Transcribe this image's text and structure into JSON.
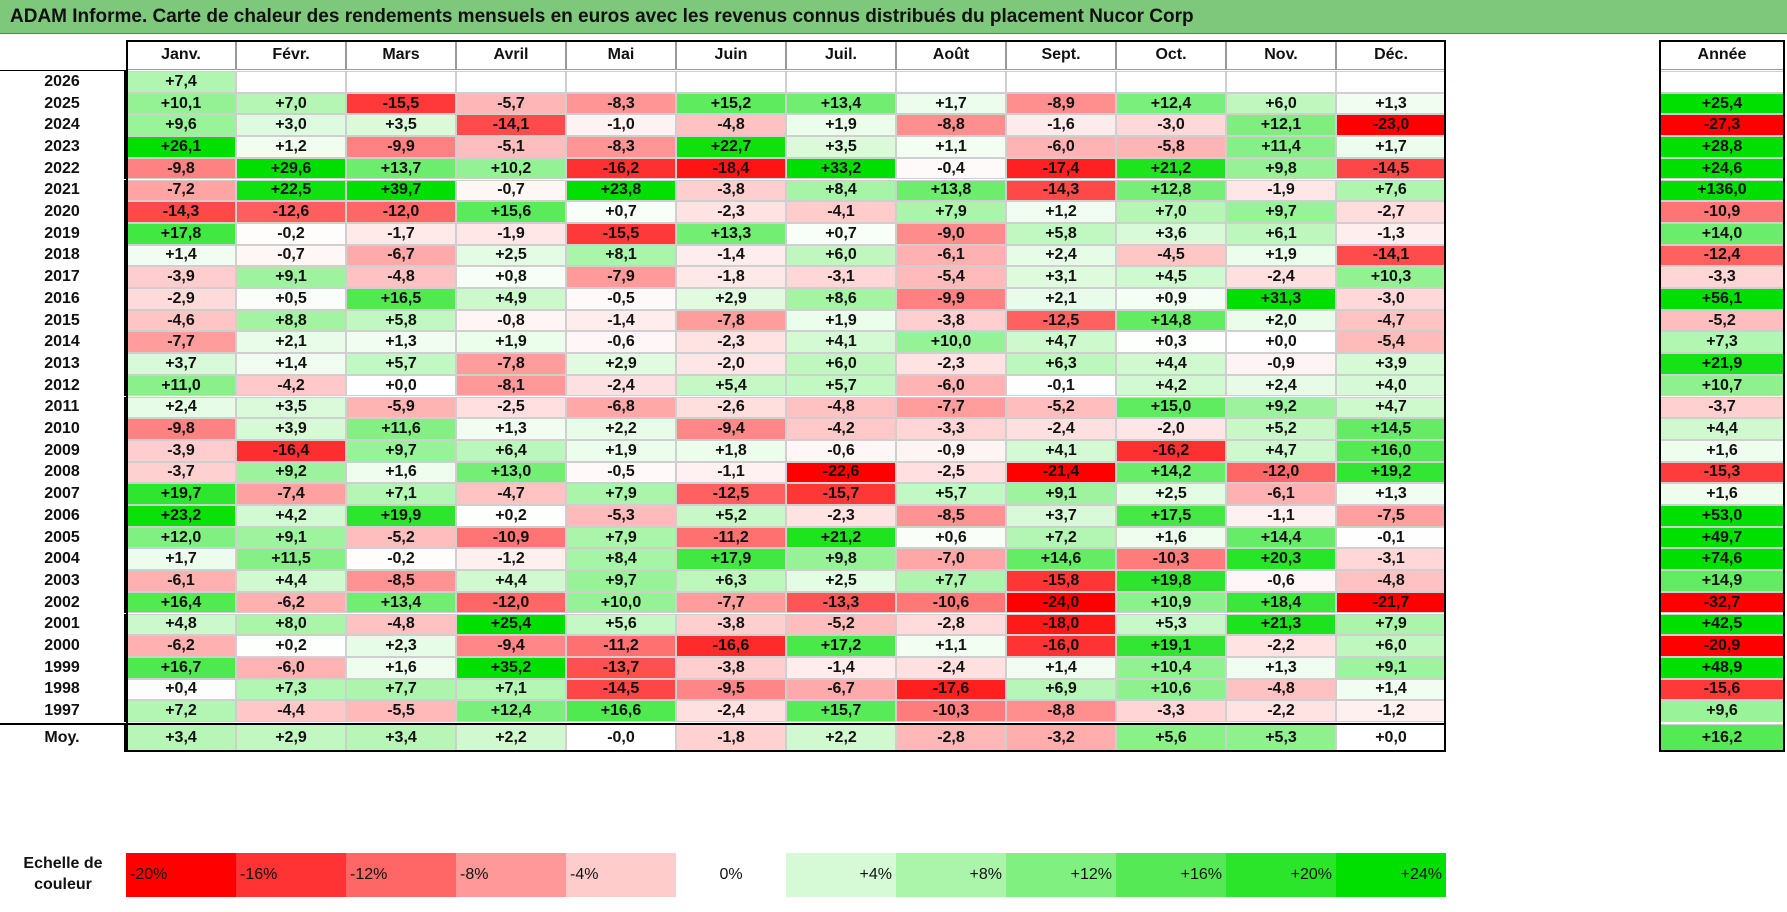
{
  "title": "ADAM Informe. Carte de chaleur des rendements mensuels en euros avec les revenus connus distribués du placement Nucor Corp",
  "chart_data": {
    "type": "heatmap",
    "title": "ADAM Informe. Carte de chaleur des rendements mensuels en euros avec les revenus connus distribués du placement Nucor Corp",
    "columns": [
      "Janv.",
      "Févr.",
      "Mars",
      "Avril",
      "Mai",
      "Juin",
      "Juil.",
      "Août",
      "Sept.",
      "Oct.",
      "Nov.",
      "Déc."
    ],
    "year_column": "Année",
    "rows": [
      {
        "label": "2026",
        "values": [
          "+7,4",
          "",
          "",
          "",
          "",
          "",
          "",
          "",
          "",
          "",
          "",
          ""
        ],
        "year": ""
      },
      {
        "label": "2025",
        "values": [
          "+10,1",
          "+7,0",
          "-15,5",
          "-5,7",
          "-8,3",
          "+15,2",
          "+13,4",
          "+1,7",
          "-8,9",
          "+12,4",
          "+6,0",
          "+1,3"
        ],
        "year": "+25,4"
      },
      {
        "label": "2024",
        "values": [
          "+9,6",
          "+3,0",
          "+3,5",
          "-14,1",
          "-1,0",
          "-4,8",
          "+1,9",
          "-8,8",
          "-1,6",
          "-3,0",
          "+12,1",
          "-23,0"
        ],
        "year": "-27,3"
      },
      {
        "label": "2023",
        "values": [
          "+26,1",
          "+1,2",
          "-9,9",
          "-5,1",
          "-8,3",
          "+22,7",
          "+3,5",
          "+1,1",
          "-6,0",
          "-5,8",
          "+11,4",
          "+1,7"
        ],
        "year": "+28,8"
      },
      {
        "label": "2022",
        "values": [
          "-9,8",
          "+29,6",
          "+13,7",
          "+10,2",
          "-16,2",
          "-18,4",
          "+33,2",
          "-0,4",
          "-17,4",
          "+21,2",
          "+9,8",
          "-14,5"
        ],
        "year": "+24,6"
      },
      {
        "label": "2021",
        "values": [
          "-7,2",
          "+22,5",
          "+39,7",
          "-0,7",
          "+23,8",
          "-3,8",
          "+8,4",
          "+13,8",
          "-14,3",
          "+12,8",
          "-1,9",
          "+7,6"
        ],
        "year": "+136,0"
      },
      {
        "label": "2020",
        "values": [
          "-14,3",
          "-12,6",
          "-12,0",
          "+15,6",
          "+0,7",
          "-2,3",
          "-4,1",
          "+7,9",
          "+1,2",
          "+7,0",
          "+9,7",
          "-2,7"
        ],
        "year": "-10,9"
      },
      {
        "label": "2019",
        "values": [
          "+17,8",
          "-0,2",
          "-1,7",
          "-1,9",
          "-15,5",
          "+13,3",
          "+0,7",
          "-9,0",
          "+5,8",
          "+3,6",
          "+6,1",
          "-1,3"
        ],
        "year": "+14,0"
      },
      {
        "label": "2018",
        "values": [
          "+1,4",
          "-0,7",
          "-6,7",
          "+2,5",
          "+8,1",
          "-1,4",
          "+6,0",
          "-6,1",
          "+2,4",
          "-4,5",
          "+1,9",
          "-14,1"
        ],
        "year": "-12,4"
      },
      {
        "label": "2017",
        "values": [
          "-3,9",
          "+9,1",
          "-4,8",
          "+0,8",
          "-7,9",
          "-1,8",
          "-3,1",
          "-5,4",
          "+3,1",
          "+4,5",
          "-2,4",
          "+10,3"
        ],
        "year": "-3,3"
      },
      {
        "label": "2016",
        "values": [
          "-2,9",
          "+0,5",
          "+16,5",
          "+4,9",
          "-0,5",
          "+2,9",
          "+8,6",
          "-9,9",
          "+2,1",
          "+0,9",
          "+31,3",
          "-3,0"
        ],
        "year": "+56,1"
      },
      {
        "label": "2015",
        "values": [
          "-4,6",
          "+8,8",
          "+5,8",
          "-0,8",
          "-1,4",
          "-7,8",
          "+1,9",
          "-3,8",
          "-12,5",
          "+14,8",
          "+2,0",
          "-4,7"
        ],
        "year": "-5,2"
      },
      {
        "label": "2014",
        "values": [
          "-7,7",
          "+2,1",
          "+1,3",
          "+1,9",
          "-0,6",
          "-2,3",
          "+4,1",
          "+10,0",
          "+4,7",
          "+0,3",
          "+0,0",
          "-5,4"
        ],
        "year": "+7,3"
      },
      {
        "label": "2013",
        "values": [
          "+3,7",
          "+1,4",
          "+5,7",
          "-7,8",
          "+2,9",
          "-2,0",
          "+6,0",
          "-2,3",
          "+6,3",
          "+4,4",
          "-0,9",
          "+3,9"
        ],
        "year": "+21,9"
      },
      {
        "label": "2012",
        "values": [
          "+11,0",
          "-4,2",
          "+0,0",
          "-8,1",
          "-2,4",
          "+5,4",
          "+5,7",
          "-6,0",
          "-0,1",
          "+4,2",
          "+2,4",
          "+4,0"
        ],
        "year": "+10,7"
      },
      {
        "label": "2011",
        "values": [
          "+2,4",
          "+3,5",
          "-5,9",
          "-2,5",
          "-6,8",
          "-2,6",
          "-4,8",
          "-7,7",
          "-5,2",
          "+15,0",
          "+9,2",
          "+4,7"
        ],
        "year": "-3,7"
      },
      {
        "label": "2010",
        "values": [
          "-9,8",
          "+3,9",
          "+11,6",
          "+1,3",
          "+2,2",
          "-9,4",
          "-4,2",
          "-3,3",
          "-2,4",
          "-2,0",
          "+5,2",
          "+14,5"
        ],
        "year": "+4,4"
      },
      {
        "label": "2009",
        "values": [
          "-3,9",
          "-16,4",
          "+9,7",
          "+6,4",
          "+1,9",
          "+1,8",
          "-0,6",
          "-0,9",
          "+4,1",
          "-16,2",
          "+4,7",
          "+16,0"
        ],
        "year": "+1,6"
      },
      {
        "label": "2008",
        "values": [
          "-3,7",
          "+9,2",
          "+1,6",
          "+13,0",
          "-0,5",
          "-1,1",
          "-22,6",
          "-2,5",
          "-21,4",
          "+14,2",
          "-12,0",
          "+19,2"
        ],
        "year": "-15,3"
      },
      {
        "label": "2007",
        "values": [
          "+19,7",
          "-7,4",
          "+7,1",
          "-4,7",
          "+7,9",
          "-12,5",
          "-15,7",
          "+5,7",
          "+9,1",
          "+2,5",
          "-6,1",
          "+1,3"
        ],
        "year": "+1,6"
      },
      {
        "label": "2006",
        "values": [
          "+23,2",
          "+4,2",
          "+19,9",
          "+0,2",
          "-5,3",
          "+5,2",
          "-2,3",
          "-8,5",
          "+3,7",
          "+17,5",
          "-1,1",
          "-7,5"
        ],
        "year": "+53,0"
      },
      {
        "label": "2005",
        "values": [
          "+12,0",
          "+9,1",
          "-5,2",
          "-10,9",
          "+7,9",
          "-11,2",
          "+21,2",
          "+0,6",
          "+7,2",
          "+1,6",
          "+14,4",
          "-0,1"
        ],
        "year": "+49,7"
      },
      {
        "label": "2004",
        "values": [
          "+1,7",
          "+11,5",
          "-0,2",
          "-1,2",
          "+8,4",
          "+17,9",
          "+9,8",
          "-7,0",
          "+14,6",
          "-10,3",
          "+20,3",
          "-3,1"
        ],
        "year": "+74,6"
      },
      {
        "label": "2003",
        "values": [
          "-6,1",
          "+4,4",
          "-8,5",
          "+4,4",
          "+9,7",
          "+6,3",
          "+2,5",
          "+7,7",
          "-15,8",
          "+19,8",
          "-0,6",
          "-4,8"
        ],
        "year": "+14,9"
      },
      {
        "label": "2002",
        "values": [
          "+16,4",
          "-6,2",
          "+13,4",
          "-12,0",
          "+10,0",
          "-7,7",
          "-13,3",
          "-10,6",
          "-24,0",
          "+10,9",
          "+18,4",
          "-21,7"
        ],
        "year": "-32,7"
      },
      {
        "label": "2001",
        "values": [
          "+4,8",
          "+8,0",
          "-4,8",
          "+25,4",
          "+5,6",
          "-3,8",
          "-5,2",
          "-2,8",
          "-18,0",
          "+5,3",
          "+21,3",
          "+7,9"
        ],
        "year": "+42,5"
      },
      {
        "label": "2000",
        "values": [
          "-6,2",
          "+0,2",
          "+2,3",
          "-9,4",
          "-11,2",
          "-16,6",
          "+17,2",
          "+1,1",
          "-16,0",
          "+19,1",
          "-2,2",
          "+6,0"
        ],
        "year": "-20,9"
      },
      {
        "label": "1999",
        "values": [
          "+16,7",
          "-6,0",
          "+1,6",
          "+35,2",
          "-13,7",
          "-3,8",
          "-1,4",
          "-2,4",
          "+1,4",
          "+10,4",
          "+1,3",
          "+9,1"
        ],
        "year": "+48,9"
      },
      {
        "label": "1998",
        "values": [
          "+0,4",
          "+7,3",
          "+7,7",
          "+7,1",
          "-14,5",
          "-9,5",
          "-6,7",
          "-17,6",
          "+6,9",
          "+10,6",
          "-4,8",
          "+1,4"
        ],
        "year": "-15,6"
      },
      {
        "label": "1997",
        "values": [
          "+7,2",
          "-4,4",
          "-5,5",
          "+12,4",
          "+16,6",
          "-2,4",
          "+15,7",
          "-10,3",
          "-8,8",
          "-3,3",
          "-2,2",
          "-1,2"
        ],
        "year": "+9,6"
      }
    ],
    "average_row": {
      "label": "Moy.",
      "values": [
        "+3,4",
        "+2,9",
        "+3,4",
        "+2,2",
        "-0,0",
        "-1,8",
        "+2,2",
        "-2,8",
        "-3,2",
        "+5,6",
        "+5,3",
        "+0,0"
      ],
      "year": "+16,2"
    },
    "scale": {
      "label": "Echelle de\ncouleur",
      "steps": [
        "-20%",
        "-16%",
        "-12%",
        "-8%",
        "-4%",
        "0%",
        "+4%",
        "+8%",
        "+12%",
        "+16%",
        "+20%",
        "+24%"
      ]
    },
    "colors": {
      "title_bg": "#7dc87b",
      "neg_strong": "#ff0000",
      "neutral": "#ffffff",
      "pos_strong": "#00e000"
    }
  }
}
